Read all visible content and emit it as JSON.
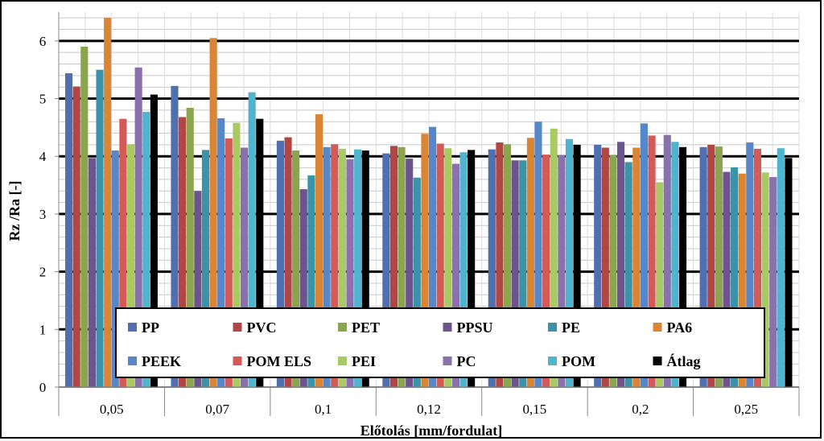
{
  "chart_data": {
    "type": "bar",
    "xlabel": "Előtolás [mm/fordulat]",
    "ylabel": "Rz /Ra [-]",
    "ylim": [
      0,
      6.5
    ],
    "yticks": [
      "0",
      "1",
      "2",
      "3",
      "4",
      "5",
      "6"
    ],
    "categories": [
      "0,05",
      "0,07",
      "0,1",
      "0,12",
      "0,15",
      "0,2",
      "0,25"
    ],
    "grid": "horizontal major (bold black) and minor (light gray)",
    "legend_position": "bottom inside plot, 6 columns x 2 rows",
    "series": [
      {
        "name": "PP",
        "color": "#4F6FAE",
        "values": [
          5.44,
          5.22,
          4.27,
          4.05,
          4.12,
          4.2,
          4.16
        ]
      },
      {
        "name": "PVC",
        "color": "#B04744",
        "values": [
          5.21,
          4.68,
          4.33,
          4.18,
          4.24,
          4.15,
          4.2
        ]
      },
      {
        "name": "PET",
        "color": "#8AA54E",
        "values": [
          5.9,
          4.84,
          4.1,
          4.16,
          4.21,
          4.02,
          4.17
        ]
      },
      {
        "name": "PPSU",
        "color": "#6E548F",
        "values": [
          3.97,
          3.4,
          3.43,
          3.96,
          3.93,
          4.25,
          3.73
        ]
      },
      {
        "name": "PE",
        "color": "#3B93A9",
        "values": [
          5.5,
          4.11,
          3.67,
          3.63,
          3.93,
          3.9,
          3.81
        ]
      },
      {
        "name": "PA6",
        "color": "#D98534",
        "values": [
          6.4,
          6.05,
          4.73,
          4.39,
          4.32,
          4.15,
          3.7
        ]
      },
      {
        "name": "PEEK",
        "color": "#5587C9",
        "values": [
          4.1,
          4.66,
          4.16,
          4.51,
          4.6,
          4.57,
          4.24
        ]
      },
      {
        "name": "POM ELS",
        "color": "#D35A57",
        "values": [
          4.65,
          4.31,
          4.21,
          4.22,
          4.03,
          4.36,
          4.13
        ]
      },
      {
        "name": "PEI",
        "color": "#A9C964",
        "values": [
          4.21,
          4.58,
          4.13,
          4.14,
          4.48,
          3.55,
          3.72
        ]
      },
      {
        "name": "PC",
        "color": "#8A70AD",
        "values": [
          5.54,
          4.15,
          3.95,
          3.87,
          4.02,
          4.37,
          3.64
        ]
      },
      {
        "name": "POM",
        "color": "#4FB4CD",
        "values": [
          4.77,
          5.11,
          4.12,
          4.07,
          4.3,
          4.25,
          4.14
        ]
      },
      {
        "name": "Átlag",
        "color": "#000000",
        "values": [
          5.07,
          4.65,
          4.1,
          4.11,
          4.2,
          4.16,
          3.97
        ]
      }
    ]
  }
}
